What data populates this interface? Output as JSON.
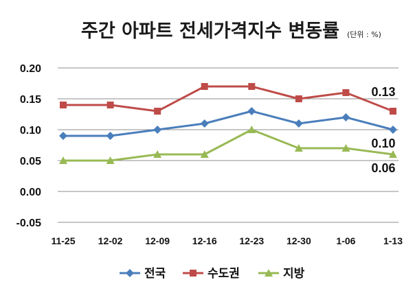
{
  "chart_data": {
    "type": "line",
    "title": "주간 아파트 전세가격지수 변동률",
    "subtitle": "(단위 : %)",
    "categories": [
      "11-25",
      "12-02",
      "12-09",
      "12-16",
      "12-23",
      "12-30",
      "1-06",
      "1-13"
    ],
    "ylim": [
      -0.05,
      0.2
    ],
    "yticks": [
      "0.20",
      "0.15",
      "0.10",
      "0.05",
      "0.00",
      "-0.05"
    ],
    "grid": true,
    "legend_position": "bottom",
    "series": [
      {
        "name": "전국",
        "color": "#4a7ebb",
        "marker": "diamond",
        "values": [
          0.09,
          0.09,
          0.1,
          0.11,
          0.13,
          0.11,
          0.12,
          0.1
        ]
      },
      {
        "name": "수도권",
        "color": "#be4b48",
        "marker": "square",
        "values": [
          0.14,
          0.14,
          0.13,
          0.17,
          0.17,
          0.15,
          0.16,
          0.13
        ]
      },
      {
        "name": "지방",
        "color": "#98b954",
        "marker": "triangle",
        "values": [
          0.05,
          0.05,
          0.06,
          0.06,
          0.1,
          0.07,
          0.07,
          0.06
        ]
      }
    ],
    "annotations": [
      {
        "series": "수도권",
        "text": "0.13"
      },
      {
        "series": "전국",
        "text": "0.10"
      },
      {
        "series": "지방",
        "text": "0.06"
      }
    ]
  }
}
